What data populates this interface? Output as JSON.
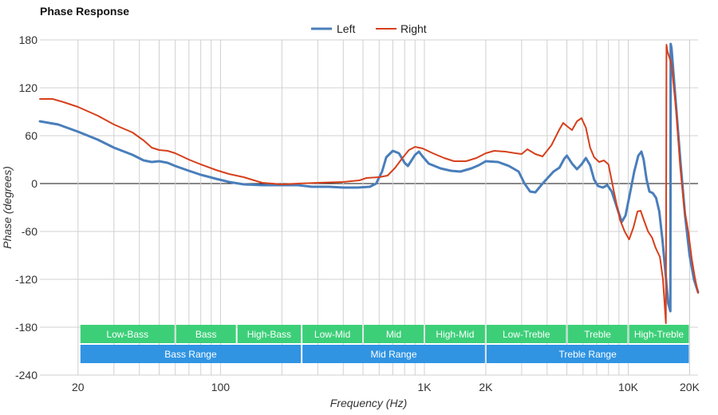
{
  "chart_data": {
    "type": "line",
    "title": "Phase Response",
    "xlabel": "Frequency (Hz)",
    "ylabel": "Phase (degrees)",
    "x_scale": "log",
    "xlim": [
      13,
      22000
    ],
    "ylim": [
      -240,
      180
    ],
    "x_ticks": [
      {
        "value": 20,
        "label": "20"
      },
      {
        "value": 100,
        "label": "100"
      },
      {
        "value": 1000,
        "label": "1K"
      },
      {
        "value": 2000,
        "label": "2K"
      },
      {
        "value": 10000,
        "label": "10K"
      },
      {
        "value": 20000,
        "label": "20K"
      }
    ],
    "y_ticks": [
      {
        "value": 180,
        "label": "180"
      },
      {
        "value": 120,
        "label": "120"
      },
      {
        "value": 60,
        "label": "60"
      },
      {
        "value": 0,
        "label": "0"
      },
      {
        "value": -60,
        "label": "-60"
      },
      {
        "value": -120,
        "label": "-120"
      },
      {
        "value": -180,
        "label": "-180"
      },
      {
        "value": -240,
        "label": "-240"
      }
    ],
    "grid": true,
    "legend": "top-center",
    "series": [
      {
        "name": "Left",
        "color": "#4a7ebb",
        "points": [
          [
            13,
            78
          ],
          [
            16,
            74
          ],
          [
            20,
            65
          ],
          [
            25,
            55
          ],
          [
            30,
            45
          ],
          [
            37,
            36
          ],
          [
            42,
            29
          ],
          [
            46,
            27
          ],
          [
            50,
            28
          ],
          [
            55,
            26
          ],
          [
            60,
            22
          ],
          [
            70,
            16
          ],
          [
            80,
            11
          ],
          [
            95,
            6
          ],
          [
            110,
            2
          ],
          [
            130,
            -1
          ],
          [
            160,
            -2
          ],
          [
            200,
            -2
          ],
          [
            240,
            -2
          ],
          [
            280,
            -4
          ],
          [
            340,
            -4
          ],
          [
            400,
            -5
          ],
          [
            470,
            -5
          ],
          [
            540,
            -4
          ],
          [
            580,
            0
          ],
          [
            620,
            15
          ],
          [
            650,
            33
          ],
          [
            700,
            41
          ],
          [
            750,
            38
          ],
          [
            800,
            26
          ],
          [
            830,
            22
          ],
          [
            860,
            28
          ],
          [
            900,
            36
          ],
          [
            940,
            40
          ],
          [
            980,
            34
          ],
          [
            1050,
            25
          ],
          [
            1200,
            19
          ],
          [
            1350,
            16
          ],
          [
            1500,
            15
          ],
          [
            1700,
            19
          ],
          [
            1850,
            23
          ],
          [
            2000,
            28
          ],
          [
            2300,
            27
          ],
          [
            2600,
            22
          ],
          [
            2900,
            15
          ],
          [
            3100,
            0
          ],
          [
            3300,
            -10
          ],
          [
            3500,
            -11
          ],
          [
            3800,
            0
          ],
          [
            4300,
            15
          ],
          [
            4600,
            20
          ],
          [
            4850,
            31
          ],
          [
            5000,
            35
          ],
          [
            5300,
            25
          ],
          [
            5600,
            18
          ],
          [
            5900,
            24
          ],
          [
            6200,
            32
          ],
          [
            6500,
            23
          ],
          [
            6800,
            5
          ],
          [
            7100,
            -3
          ],
          [
            7500,
            -5
          ],
          [
            7900,
            -2
          ],
          [
            8300,
            -10
          ],
          [
            8800,
            -30
          ],
          [
            9300,
            -48
          ],
          [
            9700,
            -40
          ],
          [
            10200,
            -12
          ],
          [
            10700,
            15
          ],
          [
            11200,
            35
          ],
          [
            11600,
            40
          ],
          [
            11900,
            30
          ],
          [
            12300,
            5
          ],
          [
            12700,
            -10
          ],
          [
            13200,
            -12
          ],
          [
            13700,
            -18
          ],
          [
            14200,
            -35
          ],
          [
            14700,
            -70
          ],
          [
            15200,
            -110
          ],
          [
            15700,
            -150
          ],
          [
            16100,
            -160
          ],
          [
            16150,
            175
          ],
          [
            16300,
            170
          ],
          [
            17000,
            110
          ],
          [
            18000,
            30
          ],
          [
            19000,
            -40
          ],
          [
            20000,
            -90
          ],
          [
            21000,
            -120
          ],
          [
            22000,
            -136
          ]
        ]
      },
      {
        "name": "Right",
        "color": "#d5401c",
        "points": [
          [
            13,
            106
          ],
          [
            15,
            106
          ],
          [
            17,
            102
          ],
          [
            20,
            96
          ],
          [
            25,
            85
          ],
          [
            30,
            74
          ],
          [
            37,
            64
          ],
          [
            42,
            54
          ],
          [
            46,
            45
          ],
          [
            50,
            42
          ],
          [
            55,
            41
          ],
          [
            60,
            38
          ],
          [
            70,
            30
          ],
          [
            80,
            24
          ],
          [
            95,
            17
          ],
          [
            110,
            12
          ],
          [
            130,
            8
          ],
          [
            160,
            1
          ],
          [
            200,
            -1
          ],
          [
            240,
            0
          ],
          [
            300,
            1
          ],
          [
            400,
            2
          ],
          [
            480,
            4
          ],
          [
            520,
            7
          ],
          [
            600,
            8
          ],
          [
            660,
            10
          ],
          [
            720,
            20
          ],
          [
            780,
            32
          ],
          [
            840,
            42
          ],
          [
            900,
            46
          ],
          [
            980,
            44
          ],
          [
            1100,
            38
          ],
          [
            1250,
            32
          ],
          [
            1400,
            28
          ],
          [
            1600,
            28
          ],
          [
            1800,
            32
          ],
          [
            2000,
            38
          ],
          [
            2200,
            41
          ],
          [
            2500,
            40
          ],
          [
            2800,
            38
          ],
          [
            3000,
            37
          ],
          [
            3200,
            43
          ],
          [
            3500,
            37
          ],
          [
            3800,
            34
          ],
          [
            4200,
            48
          ],
          [
            4600,
            68
          ],
          [
            4800,
            76
          ],
          [
            5000,
            72
          ],
          [
            5300,
            67
          ],
          [
            5600,
            78
          ],
          [
            5900,
            82
          ],
          [
            6200,
            70
          ],
          [
            6500,
            45
          ],
          [
            6800,
            33
          ],
          [
            7200,
            27
          ],
          [
            7600,
            29
          ],
          [
            8000,
            24
          ],
          [
            8500,
            -10
          ],
          [
            9100,
            -45
          ],
          [
            9600,
            -60
          ],
          [
            10100,
            -70
          ],
          [
            10600,
            -55
          ],
          [
            11100,
            -35
          ],
          [
            11500,
            -34
          ],
          [
            11900,
            -45
          ],
          [
            12500,
            -60
          ],
          [
            13100,
            -68
          ],
          [
            13600,
            -80
          ],
          [
            14300,
            -92
          ],
          [
            14800,
            -120
          ],
          [
            15300,
            -175
          ],
          [
            15400,
            174
          ],
          [
            15600,
            165
          ],
          [
            16300,
            150
          ],
          [
            17200,
            90
          ],
          [
            18000,
            20
          ],
          [
            18800,
            -30
          ],
          [
            19700,
            -60
          ],
          [
            20500,
            -95
          ],
          [
            21300,
            -120
          ],
          [
            22000,
            -137
          ]
        ]
      }
    ],
    "bands": [
      {
        "label": "Low-Bass",
        "from": 20,
        "to": 60,
        "row": 1
      },
      {
        "label": "Bass",
        "from": 60,
        "to": 120,
        "row": 1
      },
      {
        "label": "High-Bass",
        "from": 120,
        "to": 250,
        "row": 1
      },
      {
        "label": "Low-Mid",
        "from": 250,
        "to": 500,
        "row": 1
      },
      {
        "label": "Mid",
        "from": 500,
        "to": 1000,
        "row": 1
      },
      {
        "label": "High-Mid",
        "from": 1000,
        "to": 2000,
        "row": 1
      },
      {
        "label": "Low-Treble",
        "from": 2000,
        "to": 5000,
        "row": 1
      },
      {
        "label": "Treble",
        "from": 5000,
        "to": 10000,
        "row": 1
      },
      {
        "label": "High-Treble",
        "from": 10000,
        "to": 20000,
        "row": 1
      },
      {
        "label": "Bass Range",
        "from": 20,
        "to": 250,
        "row": 2
      },
      {
        "label": "Mid Range",
        "from": 250,
        "to": 2000,
        "row": 2
      },
      {
        "label": "Treble Range",
        "from": 2000,
        "to": 20000,
        "row": 2
      }
    ],
    "band_colors": {
      "row1": "#3ccf78",
      "row2": "#3094e3"
    }
  }
}
